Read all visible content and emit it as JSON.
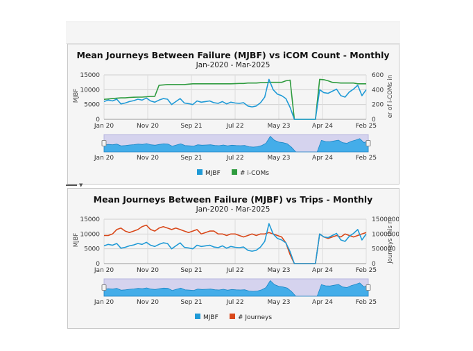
{
  "colors": {
    "mjbf": "#1f9ad6",
    "icom": "#2e9b3e",
    "journeys": "#d9481a",
    "navigator_fill": "#d5d3ee",
    "navigator_area": "#2aa6e8",
    "panel_bg": "#f5f5f5"
  },
  "charts": [
    {
      "id": "chart1",
      "title": "Mean Journeys Between Failure (MJBF) vs iCOM Count - Monthly",
      "subtitle": "Jan-2020 - Mar-2025",
      "y_left_label": "MJBF",
      "y_right_label": "er of i-COMs in",
      "x_ticks": [
        "Jan 20",
        "Nov 20",
        "Sep 21",
        "Jul 22",
        "May 23",
        "Apr 24",
        "Feb 25"
      ],
      "y_left_ticks": [
        "0",
        "5000",
        "10000",
        "15000"
      ],
      "y_right_ticks": [
        "0",
        "200",
        "400",
        "600"
      ],
      "navigator_ticks": [
        "Jan 20",
        "Nov 20",
        "Sep 21",
        "Jul 22",
        "May 23",
        "Apr 24",
        "Feb 25"
      ],
      "legend": [
        {
          "label": "MJBF",
          "color": "#1f9ad6"
        },
        {
          "label": "# i-COMs",
          "color": "#2e9b3e"
        }
      ]
    },
    {
      "id": "chart2",
      "title": "Mean Journeys Between Failure (MJBF) vs Trips - Monthly",
      "subtitle": "Jan-2020 - Mar-2025",
      "y_left_label": "MJBF",
      "y_right_label": "Journeys this m",
      "x_ticks": [
        "Jan 20",
        "Nov 20",
        "Sep 21",
        "Jul 22",
        "May 23",
        "Apr 24",
        "Feb 25"
      ],
      "y_left_ticks": [
        "0",
        "5000",
        "10000",
        "15000"
      ],
      "y_right_ticks": [
        "0",
        "500000",
        "1000000",
        "1500000"
      ],
      "navigator_ticks": [
        "Jan 20",
        "Nov 20",
        "Sep 21",
        "Jul 22",
        "May 23",
        "Apr 24",
        "Feb 25"
      ],
      "legend": [
        {
          "label": "MJBF",
          "color": "#1f9ad6"
        },
        {
          "label": "# Journeys",
          "color": "#d9481a"
        }
      ]
    }
  ],
  "chart_data": [
    {
      "type": "line",
      "title": "Mean Journeys Between Failure (MJBF) vs iCOM Count - Monthly",
      "subtitle": "Jan-2020 - Mar-2025",
      "x_start": "2020-01",
      "x_end": "2025-03",
      "ylabel_left": "MJBF",
      "ylim_left": [
        0,
        15000
      ],
      "ylim_right": [
        0,
        600
      ],
      "grid": true,
      "legend_position": "bottom",
      "series": [
        {
          "name": "MJBF",
          "axis": "left",
          "values": [
            6000,
            6500,
            6200,
            6800,
            5200,
            5500,
            6000,
            6300,
            6800,
            6500,
            7200,
            6200,
            5800,
            6500,
            7000,
            6800,
            5000,
            6000,
            7000,
            5500,
            5300,
            5000,
            6200,
            5800,
            6000,
            6200,
            5600,
            5400,
            6000,
            5200,
            5800,
            5500,
            5400,
            5600,
            4500,
            4200,
            4500,
            5600,
            7500,
            13500,
            10000,
            8500,
            8000,
            7000,
            4000,
            0,
            0,
            0,
            0,
            0,
            0,
            10000,
            9000,
            8800,
            9500,
            10200,
            8000,
            7500,
            9200,
            10200,
            11500,
            8000,
            10000
          ]
        },
        {
          "name": "# i-COMs",
          "axis": "right",
          "values": [
            270,
            275,
            280,
            285,
            290,
            290,
            295,
            298,
            300,
            300,
            305,
            310,
            310,
            460,
            465,
            470,
            470,
            470,
            470,
            470,
            475,
            480,
            480,
            480,
            480,
            480,
            480,
            480,
            480,
            480,
            480,
            482,
            485,
            485,
            490,
            490,
            490,
            495,
            495,
            500,
            500,
            500,
            500,
            520,
            530,
            0,
            0,
            0,
            0,
            0,
            0,
            540,
            535,
            520,
            500,
            495,
            490,
            490,
            490,
            490,
            480,
            480,
            480
          ]
        }
      ]
    },
    {
      "type": "line",
      "title": "Mean Journeys Between Failure (MJBF) vs Trips - Monthly",
      "subtitle": "Jan-2020 - Mar-2025",
      "x_start": "2020-01",
      "x_end": "2025-03",
      "ylabel_left": "MJBF",
      "ylim_left": [
        0,
        15000
      ],
      "ylim_right": [
        0,
        1500000
      ],
      "grid": true,
      "legend_position": "bottom",
      "series": [
        {
          "name": "MJBF",
          "axis": "left",
          "values": [
            6000,
            6500,
            6200,
            6800,
            5200,
            5500,
            6000,
            6300,
            6800,
            6500,
            7200,
            6200,
            5800,
            6500,
            7000,
            6800,
            5000,
            6000,
            7000,
            5500,
            5300,
            5000,
            6200,
            5800,
            6000,
            6200,
            5600,
            5400,
            6000,
            5200,
            5800,
            5500,
            5400,
            5600,
            4500,
            4200,
            4500,
            5600,
            7500,
            13500,
            10000,
            8500,
            8000,
            7000,
            4000,
            0,
            0,
            0,
            0,
            0,
            0,
            10000,
            9000,
            8800,
            9500,
            10200,
            8000,
            7500,
            9200,
            10200,
            11500,
            8000,
            10000
          ]
        },
        {
          "name": "# Journeys",
          "axis": "right",
          "values": [
            950000,
            950000,
            1000000,
            1150000,
            1200000,
            1100000,
            1050000,
            1100000,
            1150000,
            1250000,
            1300000,
            1150000,
            1100000,
            1200000,
            1250000,
            1200000,
            1150000,
            1200000,
            1150000,
            1100000,
            1050000,
            1100000,
            1150000,
            1000000,
            1050000,
            1100000,
            1100000,
            1000000,
            1000000,
            950000,
            1000000,
            1000000,
            950000,
            900000,
            950000,
            1000000,
            950000,
            1000000,
            1000000,
            1050000,
            1000000,
            950000,
            900000,
            700000,
            300000,
            0,
            0,
            0,
            0,
            0,
            0,
            1000000,
            900000,
            850000,
            900000,
            950000,
            900000,
            1000000,
            950000,
            900000,
            950000,
            1000000,
            1050000
          ]
        }
      ]
    }
  ]
}
